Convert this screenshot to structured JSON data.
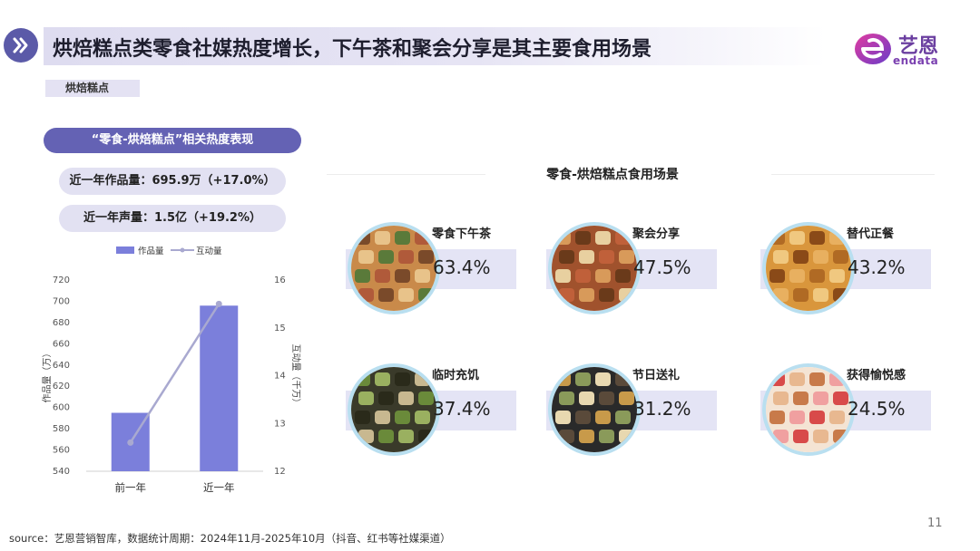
{
  "header": {
    "title": "烘焙糕点类零食社媒热度增长，下午茶和聚会分享是其主要食用场景",
    "logo_text": "艺恩",
    "logo_sub": "endata",
    "icon": "double-chevron-right-icon"
  },
  "tag": "烘焙糕点",
  "left_panel": {
    "pill_title": "“零食-烘焙糕点”相关热度表现",
    "stats": [
      "近一年作品量：695.9万（+17.0%）",
      "近一年声量：1.5亿（+19.2%）"
    ]
  },
  "chart_data": {
    "type": "bar",
    "categories": [
      "前一年",
      "近一年"
    ],
    "series": [
      {
        "name": "作品量",
        "type": "bar",
        "axis": "left",
        "values": [
          595,
          695.9
        ]
      },
      {
        "name": "互动量",
        "type": "line",
        "axis": "right",
        "values": [
          12.6,
          15.5
        ]
      }
    ],
    "ylabel": "作品量（万）",
    "y2label": "互动量（千万）",
    "ylim": [
      540,
      720
    ],
    "yticks": [
      540,
      560,
      580,
      600,
      620,
      640,
      660,
      680,
      700,
      720
    ],
    "y2lim": [
      12,
      16
    ],
    "y2ticks": [
      12,
      13,
      14,
      15,
      16
    ],
    "legend": "top",
    "colors": {
      "bar": "#7b7fdb",
      "line": "#a9a9d0"
    }
  },
  "scenes": {
    "title": "零食-烘焙糕点食用场景",
    "items": [
      {
        "label": "零食下午茶",
        "value": "63.4%",
        "icon": "snack-platter-photo"
      },
      {
        "label": "聚会分享",
        "value": "47.5%",
        "icon": "party-table-photo"
      },
      {
        "label": "替代正餐",
        "value": "43.2%",
        "icon": "bakery-bread-photo"
      },
      {
        "label": "临时充饥",
        "value": "37.4%",
        "icon": "snack-box-photo"
      },
      {
        "label": "节日送礼",
        "value": "31.2%",
        "icon": "gift-box-photo"
      },
      {
        "label": "获得愉悦感",
        "value": "24.5%",
        "icon": "dessert-photo"
      }
    ]
  },
  "page_number": "11",
  "source": "source：艺恩营销智库，数据统计周期：2024年11月-2025年10月（抖音、红书等社媒渠道）"
}
